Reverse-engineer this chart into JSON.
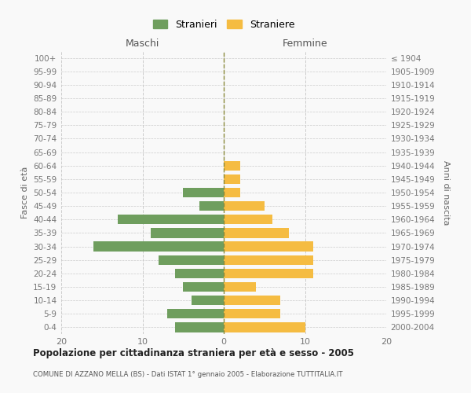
{
  "age_groups_bottom_to_top": [
    "0-4",
    "5-9",
    "10-14",
    "15-19",
    "20-24",
    "25-29",
    "30-34",
    "35-39",
    "40-44",
    "45-49",
    "50-54",
    "55-59",
    "60-64",
    "65-69",
    "70-74",
    "75-79",
    "80-84",
    "85-89",
    "90-94",
    "95-99",
    "100+"
  ],
  "birth_years_bottom_to_top": [
    "2000-2004",
    "1995-1999",
    "1990-1994",
    "1985-1989",
    "1980-1984",
    "1975-1979",
    "1970-1974",
    "1965-1969",
    "1960-1964",
    "1955-1959",
    "1950-1954",
    "1945-1949",
    "1940-1944",
    "1935-1939",
    "1930-1934",
    "1925-1929",
    "1920-1924",
    "1915-1919",
    "1910-1914",
    "1905-1909",
    "≤ 1904"
  ],
  "maschi_bottom_to_top": [
    6,
    7,
    4,
    5,
    6,
    8,
    16,
    9,
    13,
    3,
    5,
    0,
    0,
    0,
    0,
    0,
    0,
    0,
    0,
    0,
    0
  ],
  "femmine_bottom_to_top": [
    10,
    7,
    7,
    4,
    11,
    11,
    11,
    8,
    6,
    5,
    2,
    2,
    2,
    0,
    0,
    0,
    0,
    0,
    0,
    0,
    0
  ],
  "color_maschi": "#6f9e5e",
  "color_femmine": "#f5bc42",
  "title": "Popolazione per cittadinanza straniera per età e sesso - 2005",
  "subtitle": "COMUNE DI AZZANO MELLA (BS) - Dati ISTAT 1° gennaio 2005 - Elaborazione TUTTITALIA.IT",
  "label_maschi_top": "Maschi",
  "label_femmine_top": "Femmine",
  "ylabel_left": "Fasce di età",
  "ylabel_right": "Anni di nascita",
  "legend_maschi": "Stranieri",
  "legend_femmine": "Straniere",
  "xlim": 20,
  "background_color": "#f9f9f9",
  "grid_color": "#cccccc",
  "centerline_color": "#8a8a3a"
}
